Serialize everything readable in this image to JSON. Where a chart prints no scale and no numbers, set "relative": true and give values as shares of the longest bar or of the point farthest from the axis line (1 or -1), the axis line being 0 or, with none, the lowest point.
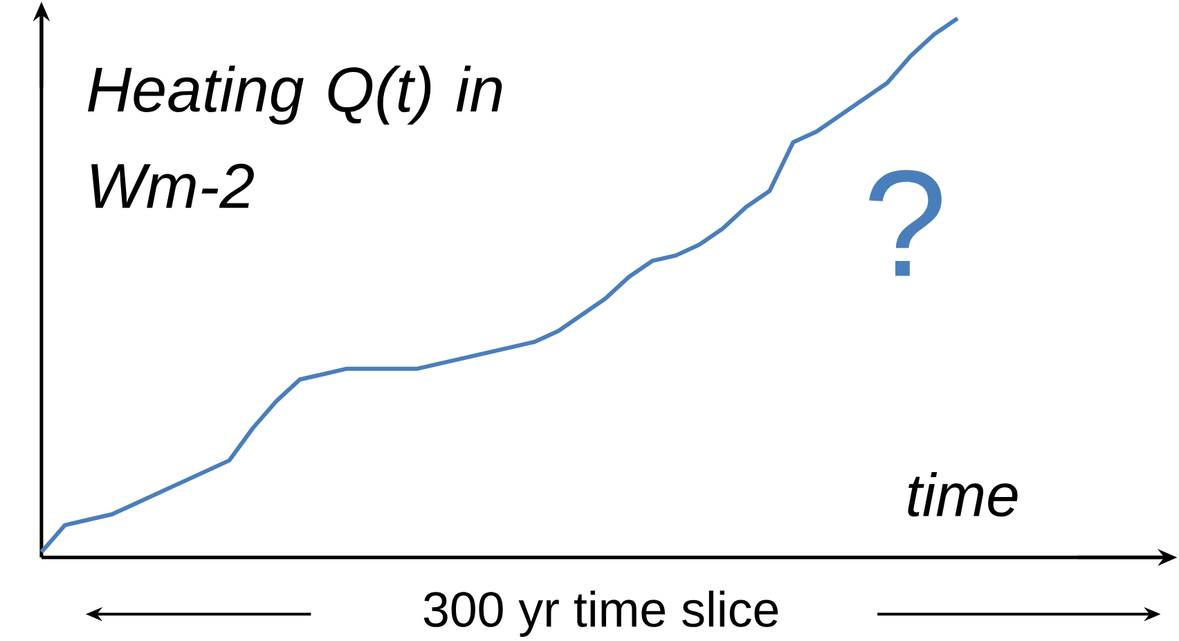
{
  "chart_data": {
    "type": "line",
    "relative": true,
    "color": "#4a7ebb",
    "xlabel": "time",
    "ylabel": "Heating Q(t) in Wm-2",
    "annotations": [
      "?",
      "300 yr time slice"
    ],
    "categories": [
      null,
      null,
      null,
      null,
      null,
      null,
      null,
      null,
      null,
      null,
      null,
      null,
      null,
      null,
      null,
      null,
      null,
      null,
      null,
      null,
      null,
      null,
      null,
      null,
      null,
      null,
      null,
      null,
      null,
      null,
      null,
      null,
      null,
      null,
      null,
      null,
      null,
      null,
      null,
      null
    ],
    "values": [
      0.01,
      0.06,
      0.07,
      0.08,
      0.1,
      0.12,
      0.14,
      0.16,
      0.18,
      0.24,
      0.29,
      0.33,
      0.34,
      0.35,
      0.35,
      0.35,
      0.35,
      0.36,
      0.37,
      0.38,
      0.39,
      0.4,
      0.42,
      0.45,
      0.48,
      0.52,
      0.55,
      0.56,
      0.58,
      0.61,
      0.65,
      0.68,
      0.77,
      0.79,
      0.82,
      0.85,
      0.88,
      0.93,
      0.97,
      1
    ]
  }
}
